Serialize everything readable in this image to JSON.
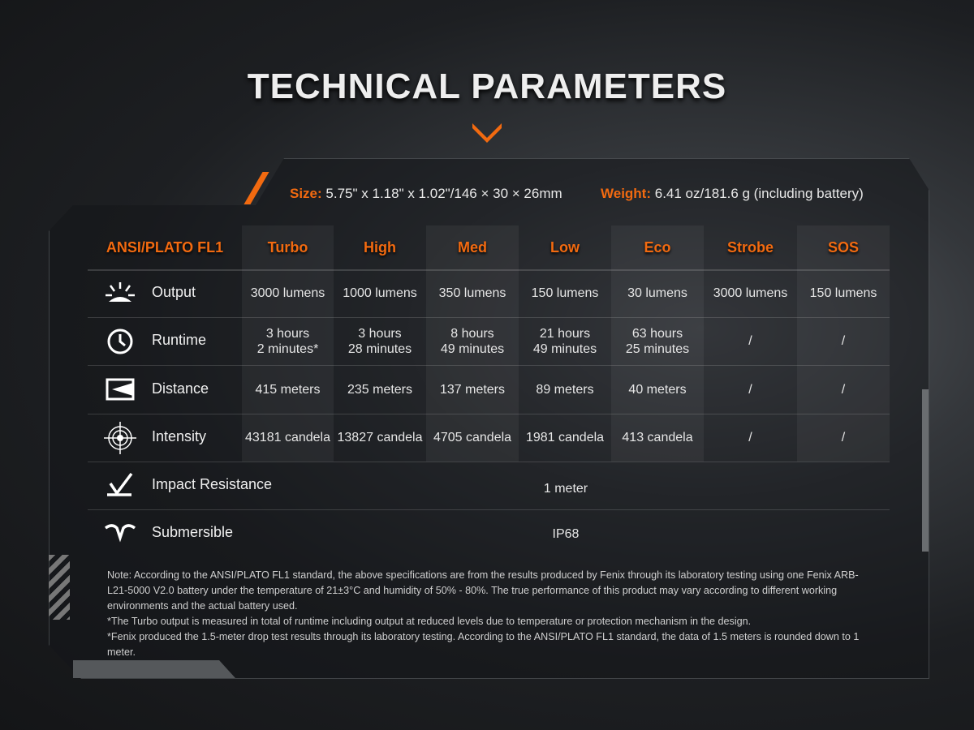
{
  "title": "TECHNICAL PARAMETERS",
  "specs": {
    "size_label": "Size:",
    "size_value": "5.75\" x 1.18\" x 1.02\"/146 × 30 × 26mm",
    "weight_label": "Weight:",
    "weight_value": "6.41 oz/181.6 g (including battery)"
  },
  "colors": {
    "accent": "#f26a10"
  },
  "table": {
    "corner": "ANSI/PLATO FL1",
    "modes": [
      "Turbo",
      "High",
      "Med",
      "Low",
      "Eco",
      "Strobe",
      "SOS"
    ],
    "rows": [
      {
        "label": "Output",
        "icon": "burst-icon",
        "values": [
          "3000 lumens",
          "1000 lumens",
          "350 lumens",
          "150 lumens",
          "30 lumens",
          "3000 lumens",
          "150 lumens"
        ]
      },
      {
        "label": "Runtime",
        "icon": "clock-icon",
        "values": [
          "3 hours\n2 minutes*",
          "3 hours\n28 minutes",
          "8 hours\n49 minutes",
          "21 hours\n49 minutes",
          "63 hours\n25 minutes",
          "/",
          "/"
        ]
      },
      {
        "label": "Distance",
        "icon": "beam-distance-icon",
        "values": [
          "415 meters",
          "235 meters",
          "137 meters",
          "89 meters",
          "40 meters",
          "/",
          "/"
        ]
      },
      {
        "label": "Intensity",
        "icon": "target-icon",
        "values": [
          "43181 candela",
          "13827 candela",
          "4705 candela",
          "1981 candela",
          "413 candela",
          "/",
          "/"
        ]
      }
    ],
    "impact": {
      "label": "Impact Resistance",
      "icon": "impact-icon",
      "value": "1 meter"
    },
    "submersible": {
      "label": "Submersible",
      "icon": "water-icon",
      "value": "IP68"
    }
  },
  "notes": [
    "Note: According to the ANSI/PLATO FL1 standard, the above specifications are from the results produced by Fenix through its laboratory testing using one Fenix ARB-L21-5000 V2.0 battery under the temperature of 21±3°C and humidity of 50% - 80%. The true performance of this product may vary according to different working environments and the actual battery used.",
    "*The Turbo output is measured in total of runtime including output at reduced levels due to temperature or protection mechanism in the design.",
    "*Fenix produced the 1.5-meter drop test results through its laboratory testing. According to the ANSI/PLATO FL1 standard, the data of 1.5 meters is rounded down to 1 meter."
  ]
}
